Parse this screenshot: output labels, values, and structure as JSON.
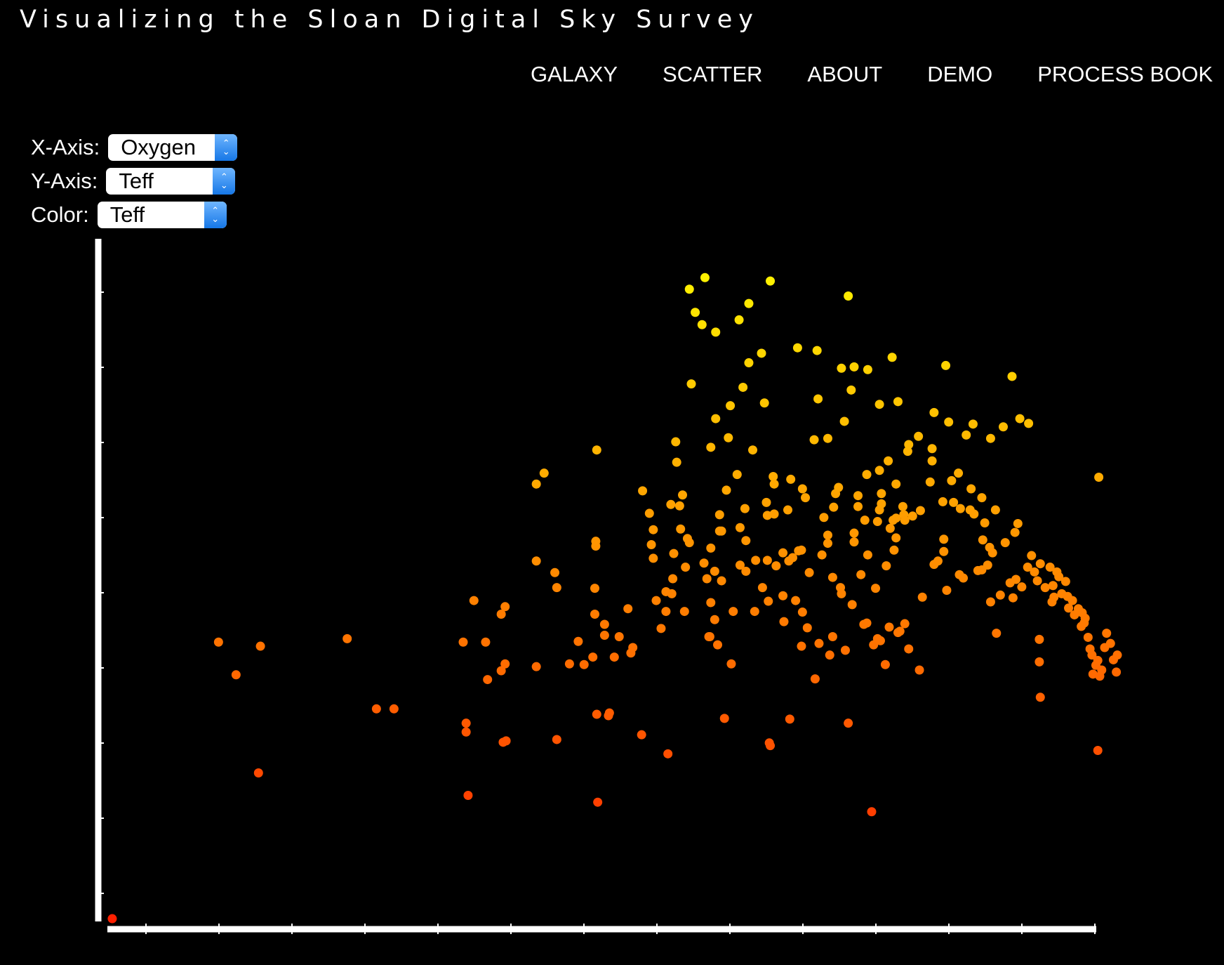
{
  "title": "Visualizing the Sloan Digital Sky Survey",
  "nav": [
    "GALAXY",
    "SCATTER",
    "ABOUT",
    "DEMO",
    "PROCESS BOOK"
  ],
  "controls": {
    "x_label": "X-Axis:",
    "x_value": "Oxygen",
    "y_label": "Y-Axis:",
    "y_value": "Teff",
    "color_label": "Color:",
    "color_value": "Teff"
  },
  "chart_data": {
    "type": "scatter",
    "xlabel": "",
    "ylabel": "",
    "xlim": [
      0,
      100
    ],
    "ylim": [
      0,
      100
    ],
    "x_ticks": 14,
    "y_ticks": 9,
    "color_scale": {
      "low": "#ff2000",
      "high": "#ffff00"
    },
    "points": [
      [
        0.5,
        0.2
      ],
      [
        11.4,
        40.8
      ],
      [
        13.2,
        36.0
      ],
      [
        15.7,
        40.2
      ],
      [
        15.5,
        21.6
      ],
      [
        24.6,
        41.3
      ],
      [
        27.6,
        31.0
      ],
      [
        29.4,
        31.0
      ],
      [
        36.5,
        40.8
      ],
      [
        36.8,
        28.9
      ],
      [
        36.8,
        27.6
      ],
      [
        37.0,
        18.3
      ],
      [
        37.6,
        46.9
      ],
      [
        38.8,
        40.8
      ],
      [
        39.0,
        35.3
      ],
      [
        40.4,
        36.6
      ],
      [
        40.8,
        37.6
      ],
      [
        40.4,
        44.9
      ],
      [
        40.8,
        46.0
      ],
      [
        40.6,
        26.1
      ],
      [
        40.9,
        26.3
      ],
      [
        44.0,
        52.7
      ],
      [
        44.0,
        64.0
      ],
      [
        44.8,
        65.6
      ],
      [
        44.0,
        37.2
      ],
      [
        45.9,
        51.0
      ],
      [
        46.1,
        48.8
      ],
      [
        46.1,
        26.5
      ],
      [
        47.4,
        37.6
      ],
      [
        48.3,
        40.9
      ],
      [
        48.9,
        37.5
      ],
      [
        49.8,
        38.6
      ],
      [
        50.0,
        44.9
      ],
      [
        50.0,
        48.7
      ],
      [
        50.1,
        54.9
      ],
      [
        50.1,
        55.6
      ],
      [
        50.2,
        69.0
      ],
      [
        50.2,
        30.2
      ],
      [
        50.3,
        17.3
      ],
      [
        51.0,
        43.4
      ],
      [
        51.0,
        41.8
      ],
      [
        51.4,
        30.0
      ],
      [
        51.5,
        30.4
      ],
      [
        52.0,
        38.6
      ],
      [
        52.5,
        41.6
      ],
      [
        53.4,
        45.7
      ],
      [
        54.9,
        63.0
      ],
      [
        53.7,
        39.2
      ],
      [
        53.9,
        40.0
      ],
      [
        54.8,
        27.2
      ],
      [
        55.6,
        59.7
      ],
      [
        55.8,
        55.1
      ],
      [
        56.0,
        53.1
      ],
      [
        56.0,
        57.3
      ],
      [
        56.3,
        46.9
      ],
      [
        56.8,
        42.8
      ],
      [
        57.3,
        45.3
      ],
      [
        57.3,
        48.2
      ],
      [
        57.8,
        61.0
      ],
      [
        57.5,
        24.4
      ],
      [
        57.9,
        47.9
      ],
      [
        58.0,
        50.1
      ],
      [
        58.1,
        53.8
      ],
      [
        58.3,
        70.2
      ],
      [
        58.4,
        67.2
      ],
      [
        58.7,
        60.8
      ],
      [
        58.8,
        57.4
      ],
      [
        59.0,
        62.4
      ],
      [
        59.2,
        45.3
      ],
      [
        59.3,
        51.8
      ],
      [
        59.5,
        56.0
      ],
      [
        59.7,
        55.4
      ],
      [
        59.7,
        92.6
      ],
      [
        59.9,
        78.7
      ],
      [
        61.0,
        87.4
      ],
      [
        61.2,
        52.4
      ],
      [
        61.5,
        50.1
      ],
      [
        61.7,
        41.6
      ],
      [
        61.8,
        41.6
      ],
      [
        61.9,
        46.6
      ],
      [
        61.9,
        69.4
      ],
      [
        61.9,
        54.6
      ],
      [
        62.3,
        44.1
      ],
      [
        62.3,
        51.2
      ],
      [
        62.4,
        73.6
      ],
      [
        62.6,
        40.4
      ],
      [
        62.8,
        59.5
      ],
      [
        62.8,
        57.1
      ],
      [
        63.0,
        49.8
      ],
      [
        63.0,
        57.1
      ],
      [
        63.3,
        29.6
      ],
      [
        63.5,
        63.1
      ],
      [
        63.7,
        70.8
      ],
      [
        63.9,
        75.5
      ],
      [
        64.0,
        37.6
      ],
      [
        64.2,
        45.3
      ],
      [
        64.6,
        65.4
      ],
      [
        64.9,
        52.1
      ],
      [
        64.9,
        57.6
      ],
      [
        65.2,
        78.2
      ],
      [
        65.4,
        60.4
      ],
      [
        65.5,
        55.7
      ],
      [
        65.5,
        51.2
      ],
      [
        65.8,
        81.8
      ],
      [
        66.2,
        69.0
      ],
      [
        66.4,
        45.3
      ],
      [
        66.5,
        52.8
      ],
      [
        67.1,
        83.2
      ],
      [
        67.2,
        48.8
      ],
      [
        67.4,
        75.9
      ],
      [
        67.6,
        61.3
      ],
      [
        67.7,
        59.4
      ],
      [
        67.7,
        52.8
      ],
      [
        67.8,
        46.8
      ],
      [
        67.9,
        26.0
      ],
      [
        68.0,
        25.6
      ],
      [
        68.3,
        65.1
      ],
      [
        68.4,
        64.0
      ],
      [
        68.4,
        59.6
      ],
      [
        68.6,
        52.0
      ],
      [
        69.3,
        47.6
      ],
      [
        69.3,
        53.9
      ],
      [
        69.4,
        43.8
      ],
      [
        69.8,
        60.2
      ],
      [
        69.9,
        52.7
      ],
      [
        70.0,
        29.5
      ],
      [
        70.1,
        64.7
      ],
      [
        70.3,
        53.2
      ],
      [
        70.6,
        46.9
      ],
      [
        70.8,
        84.0
      ],
      [
        70.9,
        54.2
      ],
      [
        71.2,
        54.3
      ],
      [
        71.2,
        40.2
      ],
      [
        71.3,
        45.2
      ],
      [
        71.3,
        63.3
      ],
      [
        71.6,
        62.0
      ],
      [
        71.8,
        42.9
      ],
      [
        72.0,
        51.0
      ],
      [
        72.5,
        70.5
      ],
      [
        72.6,
        35.4
      ],
      [
        72.9,
        76.5
      ],
      [
        73.0,
        40.6
      ],
      [
        73.3,
        53.6
      ],
      [
        73.5,
        59.1
      ],
      [
        73.9,
        55.3
      ],
      [
        73.9,
        56.5
      ],
      [
        73.9,
        70.7
      ],
      [
        74.1,
        38.9
      ],
      [
        74.4,
        50.3
      ],
      [
        74.4,
        41.6
      ],
      [
        74.5,
        60.6
      ],
      [
        74.7,
        62.6
      ],
      [
        75.0,
        63.5
      ],
      [
        75.2,
        48.8
      ],
      [
        75.3,
        47.9
      ],
      [
        75.6,
        73.2
      ],
      [
        75.7,
        39.6
      ],
      [
        76.0,
        91.6
      ],
      [
        76.0,
        28.9
      ],
      [
        76.4,
        46.3
      ],
      [
        76.6,
        56.8
      ],
      [
        76.6,
        81.2
      ],
      [
        76.6,
        55.5
      ],
      [
        77.0,
        60.7
      ],
      [
        77.0,
        62.3
      ],
      [
        77.3,
        50.7
      ],
      [
        77.6,
        43.4
      ],
      [
        77.7,
        58.7
      ],
      [
        77.9,
        65.4
      ],
      [
        77.9,
        43.6
      ],
      [
        78.0,
        53.6
      ],
      [
        78.4,
        15.9
      ],
      [
        78.6,
        40.4
      ],
      [
        78.8,
        48.7
      ],
      [
        79.0,
        58.5
      ],
      [
        79.0,
        41.3
      ],
      [
        79.2,
        60.2
      ],
      [
        79.2,
        66.0
      ],
      [
        79.3,
        41.0
      ],
      [
        79.4,
        61.1
      ],
      [
        79.4,
        62.6
      ],
      [
        79.8,
        37.5
      ],
      [
        79.9,
        52.0
      ],
      [
        80.1,
        67.4
      ],
      [
        80.2,
        43.0
      ],
      [
        80.3,
        57.5
      ],
      [
        80.6,
        58.7
      ],
      [
        80.7,
        54.3
      ],
      [
        80.9,
        64.0
      ],
      [
        80.9,
        56.1
      ],
      [
        80.9,
        59.0
      ],
      [
        81.1,
        42.2
      ],
      [
        81.3,
        42.4
      ],
      [
        81.6,
        60.7
      ],
      [
        81.7,
        59.5
      ],
      [
        81.8,
        58.7
      ],
      [
        81.8,
        43.5
      ],
      [
        82.1,
        68.8
      ],
      [
        82.2,
        69.8
      ],
      [
        82.2,
        39.8
      ],
      [
        82.6,
        59.3
      ],
      [
        83.2,
        71.0
      ],
      [
        83.3,
        36.7
      ],
      [
        83.4,
        60.1
      ],
      [
        83.6,
        47.4
      ],
      [
        84.4,
        64.3
      ],
      [
        84.6,
        67.4
      ],
      [
        84.6,
        69.2
      ],
      [
        84.8,
        52.2
      ],
      [
        85.2,
        52.7
      ],
      [
        85.7,
        61.4
      ],
      [
        85.8,
        54.1
      ],
      [
        85.8,
        55.9
      ],
      [
        86.1,
        48.4
      ],
      [
        86.6,
        64.5
      ],
      [
        86.8,
        61.3
      ],
      [
        87.3,
        65.6
      ],
      [
        87.4,
        50.7
      ],
      [
        87.5,
        60.4
      ],
      [
        87.8,
        50.2
      ],
      [
        88.1,
        71.2
      ],
      [
        88.5,
        60.2
      ],
      [
        88.6,
        63.3
      ],
      [
        88.9,
        59.6
      ],
      [
        89.3,
        51.3
      ],
      [
        89.7,
        51.4
      ],
      [
        89.7,
        62.0
      ],
      [
        89.8,
        55.8
      ],
      [
        90.0,
        58.3
      ],
      [
        90.3,
        52.1
      ],
      [
        90.5,
        54.7
      ],
      [
        90.6,
        46.7
      ],
      [
        90.8,
        53.9
      ],
      [
        91.1,
        60.2
      ],
      [
        91.2,
        42.1
      ],
      [
        91.6,
        47.7
      ],
      [
        92.1,
        55.4
      ],
      [
        92.6,
        49.5
      ],
      [
        92.9,
        47.3
      ],
      [
        93.1,
        56.9
      ],
      [
        93.2,
        50.0
      ],
      [
        93.4,
        58.2
      ],
      [
        93.8,
        48.9
      ],
      [
        94.4,
        51.8
      ],
      [
        94.8,
        53.5
      ],
      [
        95.1,
        51.1
      ],
      [
        95.4,
        49.8
      ],
      [
        95.6,
        41.2
      ],
      [
        95.6,
        37.9
      ],
      [
        95.7,
        52.3
      ],
      [
        95.7,
        32.7
      ],
      [
        96.2,
        48.8
      ],
      [
        96.7,
        51.8
      ],
      [
        96.9,
        46.7
      ],
      [
        97.0,
        49.1
      ],
      [
        97.1,
        47.4
      ],
      [
        97.4,
        51.1
      ],
      [
        97.6,
        50.4
      ],
      [
        97.9,
        47.9
      ],
      [
        98.3,
        49.7
      ],
      [
        98.5,
        47.5
      ],
      [
        98.6,
        45.8
      ],
      [
        99.0,
        46.9
      ],
      [
        99.2,
        44.8
      ],
      [
        99.6,
        45.7
      ],
      [
        99.9,
        43.1
      ],
      [
        100.0,
        45.1
      ],
      [
        100.2,
        43.6
      ],
      [
        100.3,
        44.3
      ],
      [
        100.6,
        41.5
      ],
      [
        100.8,
        39.8
      ],
      [
        101.0,
        38.9
      ],
      [
        101.1,
        36.1
      ],
      [
        101.4,
        37.4
      ],
      [
        101.6,
        38.1
      ],
      [
        101.8,
        35.8
      ],
      [
        102.0,
        36.7
      ],
      [
        101.7,
        65.0
      ],
      [
        101.6,
        24.9
      ],
      [
        102.5,
        42.1
      ],
      [
        103.2,
        38.2
      ],
      [
        103.5,
        36.4
      ],
      [
        102.3,
        40.0
      ],
      [
        102.9,
        40.6
      ],
      [
        103.6,
        38.9
      ],
      [
        60.3,
        89.2
      ],
      [
        61.3,
        94.3
      ],
      [
        62.4,
        86.3
      ],
      [
        64.8,
        88.1
      ],
      [
        65.8,
        90.5
      ],
      [
        68.0,
        93.8
      ],
      [
        72.8,
        83.6
      ],
      [
        75.3,
        81.0
      ],
      [
        76.3,
        77.8
      ],
      [
        79.2,
        75.7
      ],
      [
        81.1,
        76.1
      ],
      [
        84.8,
        74.5
      ],
      [
        86.3,
        73.1
      ],
      [
        88.8,
        72.8
      ],
      [
        90.6,
        70.7
      ],
      [
        91.9,
        72.4
      ],
      [
        93.6,
        73.6
      ],
      [
        94.5,
        72.9
      ],
      [
        92.8,
        79.8
      ],
      [
        86.0,
        81.4
      ],
      [
        80.5,
        82.6
      ],
      [
        78.0,
        80.8
      ]
    ]
  }
}
